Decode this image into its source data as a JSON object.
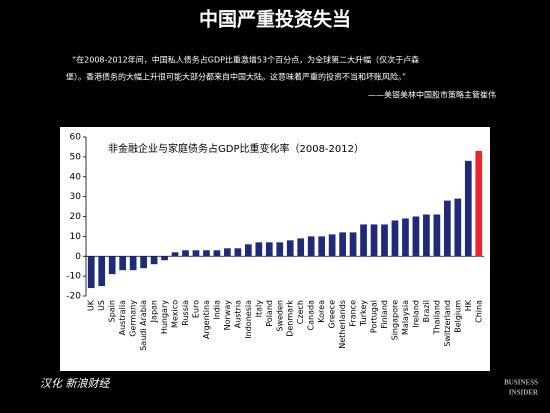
{
  "slide": {
    "title": "中国严重投资失当",
    "quote": [
      "“在2008-2012年间，中国私人债务占GDP比重激增53个百分点，为全球第二大升幅（仅次于卢森",
      "堡）。香港债务的大幅上升很可能大部分都来自中国大陆。这意味着严重的投资不当和坏账风险。”"
    ],
    "attribution": "——美银美林中国股市策略主管崔伟",
    "credit": "汉化 新浪财经",
    "logo": [
      "BUSINESS",
      "INSIDER"
    ]
  },
  "chart_data": {
    "type": "bar",
    "title": "非金融企业与家庭债务占GDP比重变化率（2008-2012）",
    "categories": [
      "UK",
      "US",
      "Spain",
      "Australia",
      "Germany",
      "Saudi Arabia",
      "Japan",
      "Hungary",
      "Mexico",
      "Russia",
      "Euro",
      "Argentina",
      "India",
      "Norway",
      "Austria",
      "Indonesia",
      "Italy",
      "Poland",
      "Sweden",
      "Denmark",
      "Czech",
      "Canada",
      "Korea",
      "Greece",
      "Netherlands",
      "France",
      "Turkey",
      "Portugal",
      "Finland",
      "Singapore",
      "Malaysia",
      "Ireland",
      "Brazil",
      "Thailand",
      "Switzerland",
      "Belgium",
      "HK",
      "China"
    ],
    "values": [
      -16,
      -15,
      -9,
      -7,
      -7,
      -6,
      -4,
      -2,
      2,
      3,
      3,
      3,
      3,
      4,
      4,
      6,
      7,
      7,
      7,
      8,
      9,
      10,
      10,
      11,
      12,
      12,
      16,
      16,
      16,
      18,
      19,
      20,
      21,
      21,
      28,
      29,
      48,
      53
    ],
    "color": "#1f2a78",
    "highlight": {
      "index": 37,
      "color": "#e8262b"
    },
    "ylim": [
      -20,
      60
    ],
    "yticks": [
      -20,
      -10,
      0,
      10,
      20,
      30,
      40,
      50,
      60
    ],
    "grid": false
  }
}
